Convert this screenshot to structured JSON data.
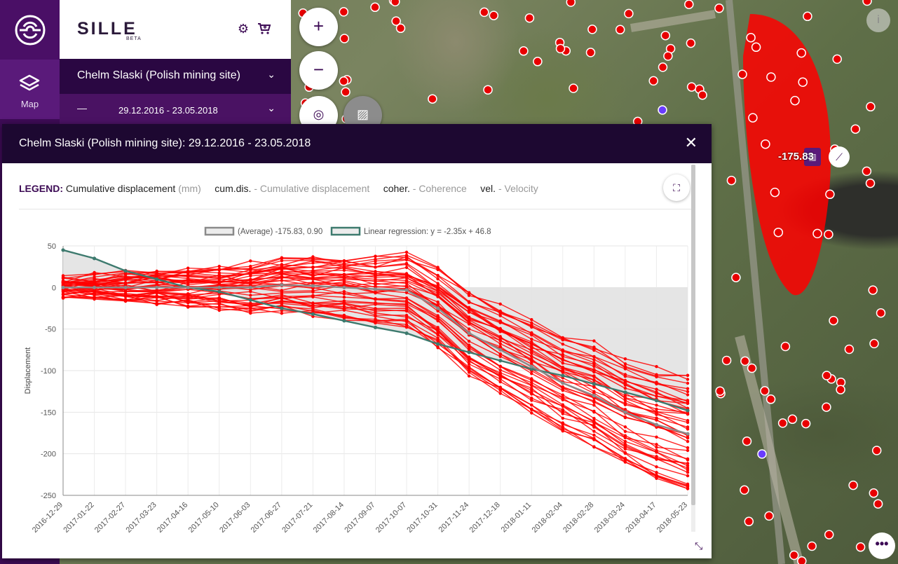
{
  "app": {
    "brand": "SILLE",
    "beta": "BETA",
    "rail_map_label": "Map"
  },
  "header": {
    "site_name": "Chelm Slaski (Polish mining site)",
    "date_range": "29.12.2016 - 23.05.2018"
  },
  "map": {
    "zoom_in": "+",
    "zoom_out": "−",
    "value_label": "-175.83",
    "info": "i",
    "more": "•••"
  },
  "modal": {
    "title": "Chelm Slaski (Polish mining site): 29.12.2016 - 23.05.2018",
    "legend_key": "LEGEND:",
    "legend_main": "Cumulative displacement",
    "legend_unit": "(mm)",
    "legend_items": [
      {
        "abbr": "cum.dis.",
        "desc": "- Cumulative displacement"
      },
      {
        "abbr": "coher.",
        "desc": "- Coherence"
      },
      {
        "abbr": "vel.",
        "desc": "- Velocity"
      }
    ]
  },
  "chart_data": {
    "type": "line",
    "ylabel": "Displacement",
    "xlabel": "",
    "ylim": [
      -250,
      50
    ],
    "yticks": [
      50,
      0,
      -50,
      -100,
      -150,
      -200,
      -250
    ],
    "categories": [
      "2016-12-29",
      "2017-01-22",
      "2017-02-27",
      "2017-03-23",
      "2017-04-16",
      "2017-05-10",
      "2017-06-03",
      "2017-06-27",
      "2017-07-21",
      "2017-08-14",
      "2017-09-07",
      "2017-10-07",
      "2017-10-31",
      "2017-11-24",
      "2017-12-18",
      "2018-01-11",
      "2018-02-04",
      "2018-02-28",
      "2018-03-24",
      "2018-04-17",
      "2018-05-23"
    ],
    "series": [
      {
        "name": "(Average) -175.83, 0.90",
        "color": "#8a8a8a",
        "values": [
          0,
          0,
          0,
          0,
          0,
          0,
          0,
          3,
          2,
          0,
          -2,
          -3,
          -25,
          -55,
          -75,
          -95,
          -115,
          -130,
          -150,
          -165,
          -176
        ]
      },
      {
        "name": "Linear regression: y = -2.35x + 46.8",
        "color": "#3d7a6e",
        "values": [
          45,
          35,
          20,
          10,
          0,
          -5,
          -15,
          -25,
          -32,
          -40,
          -48,
          -55,
          -68,
          -78,
          -88,
          -98,
          -106,
          -116,
          -126,
          -136,
          -148
        ]
      }
    ],
    "legend_placement": "top",
    "grid": true
  }
}
